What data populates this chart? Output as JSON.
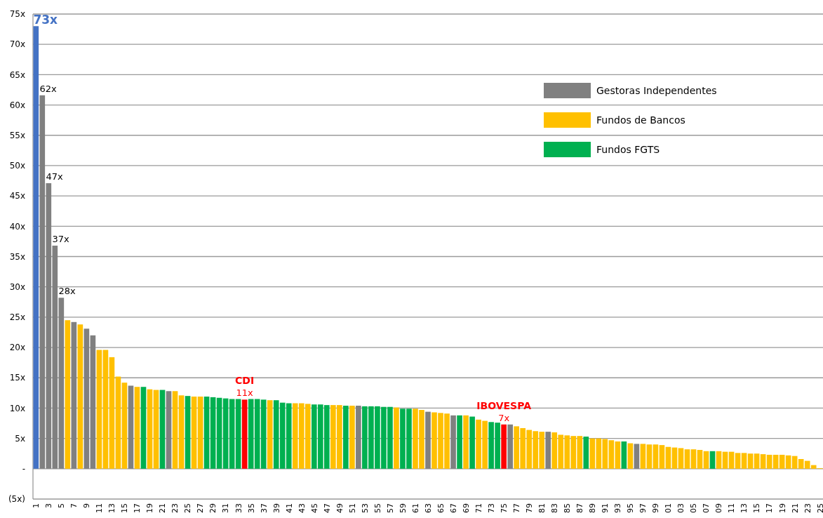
{
  "chart_data": {
    "type": "bar",
    "categories": [
      "1",
      null,
      "3",
      null,
      "5",
      null,
      "7",
      null,
      "9",
      null,
      "11",
      null,
      "13",
      null,
      "15",
      null,
      "17",
      null,
      "19",
      null,
      "21",
      null,
      "23",
      null,
      "25",
      null,
      "27",
      null,
      "29",
      null,
      "31",
      null,
      "33",
      null,
      "35",
      null,
      "37",
      null,
      "39",
      null,
      "41",
      null,
      "43",
      null,
      "45",
      null,
      "47",
      null,
      "49",
      null,
      "51",
      null,
      "53",
      null,
      "55",
      null,
      "57",
      null,
      "59",
      null,
      "61",
      null,
      "63",
      null,
      "65",
      null,
      "67",
      null,
      "69",
      null,
      "71",
      null,
      "73",
      null,
      "75",
      null,
      "77",
      null,
      "79",
      null,
      "81",
      null,
      "83",
      null,
      "85",
      null,
      "87",
      null,
      "89",
      null,
      "91",
      null,
      "93",
      null,
      "95",
      null,
      "97",
      null,
      "99",
      null,
      "01",
      null,
      "03",
      null,
      "05",
      null,
      "07",
      null,
      "09",
      null,
      "11",
      null,
      "13",
      null,
      "15",
      null,
      "17",
      null,
      "19",
      null,
      "21",
      null,
      "23",
      null,
      "25"
    ],
    "ylim": [
      -5,
      75
    ],
    "yticks": [
      {
        "value": -5,
        "label": "(5x)"
      },
      {
        "value": 0,
        "label": "-"
      },
      {
        "value": 5,
        "label": "5x"
      },
      {
        "value": 10,
        "label": "10x"
      },
      {
        "value": 15,
        "label": "15x"
      },
      {
        "value": 20,
        "label": "20x"
      },
      {
        "value": 25,
        "label": "25x"
      },
      {
        "value": 30,
        "label": "30x"
      },
      {
        "value": 35,
        "label": "35x"
      },
      {
        "value": 40,
        "label": "40x"
      },
      {
        "value": 45,
        "label": "45x"
      },
      {
        "value": 50,
        "label": "50x"
      },
      {
        "value": 55,
        "label": "55x"
      },
      {
        "value": 60,
        "label": "60x"
      },
      {
        "value": 65,
        "label": "65x"
      },
      {
        "value": 70,
        "label": "70x"
      },
      {
        "value": 75,
        "label": "75x"
      }
    ],
    "grid": "y",
    "legend": "top right",
    "annotations": [
      {
        "text": "CDI",
        "y": 11.4
      },
      {
        "text": "IBOVESPA",
        "y": 7.3
      }
    ],
    "series": [
      {
        "color": "#4472c4",
        "values": [
          73,
          null,
          null,
          null,
          null,
          null,
          null,
          null,
          null,
          null,
          null,
          null,
          null,
          null,
          null,
          null,
          null,
          null,
          null,
          null,
          null,
          null,
          null,
          null,
          null,
          null,
          null,
          null,
          null,
          null,
          null,
          null,
          null,
          null,
          null,
          null,
          null,
          null,
          null,
          null,
          null,
          null,
          null,
          null,
          null,
          null,
          null,
          null,
          null,
          null,
          null,
          null,
          null,
          null,
          null,
          null,
          null,
          null,
          null,
          null,
          null,
          null,
          null,
          null,
          null,
          null,
          null,
          null,
          null,
          null,
          null,
          null,
          null,
          null,
          null,
          null,
          null,
          null,
          null,
          null,
          null,
          null,
          null,
          null,
          null,
          null,
          null,
          null,
          null,
          null,
          null,
          null,
          null,
          null,
          null,
          null,
          null,
          null,
          null,
          null,
          null,
          null,
          null,
          null,
          null,
          null,
          null,
          null,
          null,
          null,
          null,
          null,
          null,
          null,
          null,
          null,
          null,
          null,
          null,
          null,
          null,
          null,
          null,
          null,
          null
        ],
        "value_labels": [
          "73x",
          null,
          null,
          null,
          null,
          null,
          null,
          null,
          null,
          null,
          null,
          null,
          null,
          null,
          null,
          null,
          null,
          null,
          null,
          null,
          null,
          null,
          null,
          null,
          null,
          null,
          null,
          null,
          null,
          null,
          null,
          null,
          null,
          null,
          null,
          null,
          null,
          null,
          null,
          null,
          null,
          null,
          null,
          null,
          null,
          null,
          null,
          null,
          null,
          null,
          null,
          null,
          null,
          null,
          null,
          null,
          null,
          null,
          null,
          null,
          null,
          null,
          null,
          null,
          null,
          null,
          null,
          null,
          null,
          null,
          null,
          null,
          null,
          null,
          null,
          null,
          null,
          null,
          null,
          null,
          null,
          null,
          null,
          null,
          null,
          null,
          null,
          null,
          null,
          null,
          null,
          null,
          null,
          null,
          null,
          null,
          null,
          null,
          null,
          null,
          null,
          null,
          null,
          null,
          null,
          null,
          null,
          null,
          null,
          null,
          null,
          null,
          null,
          null,
          null,
          null,
          null,
          null,
          null,
          null,
          null,
          null,
          null,
          null,
          null
        ]
      },
      {
        "name": "Gestoras Independentes",
        "color": "#808080",
        "values": [
          null,
          61.6,
          47.1,
          36.8,
          28.2,
          null,
          24.2,
          null,
          23.1,
          22.0,
          null,
          null,
          null,
          null,
          null,
          13.7,
          null,
          null,
          null,
          null,
          null,
          12.8,
          null,
          null,
          null,
          null,
          null,
          null,
          null,
          null,
          null,
          null,
          null,
          null,
          null,
          null,
          null,
          null,
          null,
          null,
          null,
          null,
          null,
          null,
          null,
          null,
          null,
          null,
          null,
          null,
          null,
          10.4,
          null,
          null,
          null,
          null,
          null,
          null,
          null,
          null,
          null,
          null,
          9.4,
          null,
          null,
          null,
          8.8,
          null,
          null,
          null,
          null,
          null,
          null,
          null,
          null,
          7.3,
          null,
          null,
          null,
          null,
          null,
          6.1,
          null,
          null,
          null,
          null,
          null,
          null,
          null,
          null,
          null,
          null,
          null,
          null,
          null,
          4.1,
          null,
          null,
          null,
          null,
          null,
          null,
          null,
          null,
          null,
          null,
          null,
          null,
          null,
          null,
          null,
          null,
          null,
          null,
          null,
          null,
          null,
          null,
          null,
          null,
          null,
          null,
          null,
          null,
          null
        ],
        "value_labels": [
          null,
          "62x",
          "47x",
          "37x",
          "28x",
          null,
          null,
          null,
          null,
          null,
          null,
          null,
          null,
          null,
          null,
          null,
          null,
          null,
          null,
          null,
          null,
          null,
          null,
          null,
          null,
          null,
          null,
          null,
          null,
          null,
          null,
          null,
          null,
          null,
          null,
          null,
          null,
          null,
          null,
          null,
          null,
          null,
          null,
          null,
          null,
          null,
          null,
          null,
          null,
          null,
          null,
          null,
          null,
          null,
          null,
          null,
          null,
          null,
          null,
          null,
          null,
          null,
          null,
          null,
          null,
          null,
          null,
          null,
          null,
          null,
          null,
          null,
          null,
          null,
          null,
          null,
          null,
          null,
          null,
          null,
          null,
          null,
          null,
          null,
          null,
          null,
          null,
          null,
          null,
          null,
          null,
          null,
          null,
          null,
          null,
          null,
          null,
          null,
          null,
          null,
          null,
          null,
          null,
          null,
          null,
          null,
          null,
          null,
          null,
          null,
          null,
          null,
          null,
          null,
          null,
          null,
          null,
          null,
          null,
          null,
          null,
          null,
          null,
          null,
          null
        ]
      },
      {
        "name": "Fundos de Bancos",
        "color": "#ffc000",
        "values": [
          null,
          null,
          null,
          null,
          null,
          24.5,
          null,
          23.8,
          null,
          null,
          19.6,
          19.6,
          18.4,
          15.2,
          14.2,
          null,
          13.5,
          null,
          13.1,
          13.0,
          null,
          null,
          12.8,
          12.1,
          null,
          11.9,
          11.9,
          null,
          null,
          null,
          null,
          null,
          null,
          null,
          null,
          null,
          null,
          11.3,
          null,
          null,
          null,
          10.8,
          10.8,
          10.7,
          null,
          null,
          null,
          10.5,
          10.5,
          null,
          10.4,
          null,
          null,
          null,
          null,
          null,
          null,
          10.1,
          null,
          null,
          9.9,
          9.7,
          null,
          9.3,
          9.2,
          9.1,
          null,
          null,
          8.8,
          null,
          8.1,
          7.9,
          null,
          null,
          null,
          null,
          7.0,
          6.7,
          6.4,
          6.2,
          6.1,
          null,
          6.0,
          5.6,
          5.5,
          5.4,
          5.4,
          null,
          5.0,
          5.0,
          4.9,
          4.7,
          4.5,
          null,
          4.2,
          null,
          4.1,
          4.0,
          4.0,
          3.9,
          3.6,
          3.5,
          3.4,
          3.2,
          3.2,
          3.1,
          2.9,
          null,
          2.9,
          2.8,
          2.8,
          2.6,
          2.6,
          2.5,
          2.5,
          2.4,
          2.3,
          2.3,
          2.3,
          2.2,
          2.1,
          1.6,
          1.3,
          0.6,
          0.1
        ]
      },
      {
        "name": "Fundos FGTS",
        "color": "#00b050",
        "values": [
          null,
          null,
          null,
          null,
          null,
          null,
          null,
          null,
          null,
          null,
          null,
          null,
          null,
          null,
          null,
          null,
          null,
          13.5,
          null,
          null,
          13.0,
          null,
          null,
          null,
          12.0,
          null,
          null,
          11.9,
          11.8,
          11.7,
          11.6,
          11.5,
          11.5,
          null,
          11.5,
          11.5,
          11.4,
          null,
          11.3,
          10.9,
          10.8,
          null,
          null,
          null,
          10.6,
          10.6,
          10.5,
          null,
          null,
          10.4,
          null,
          null,
          10.3,
          10.3,
          10.3,
          10.2,
          10.2,
          null,
          9.9,
          9.9,
          null,
          null,
          null,
          null,
          null,
          null,
          null,
          8.8,
          null,
          8.6,
          null,
          null,
          7.7,
          7.6,
          null,
          null,
          null,
          null,
          null,
          null,
          null,
          null,
          null,
          null,
          null,
          null,
          null,
          5.3,
          null,
          null,
          null,
          null,
          null,
          4.5,
          null,
          null,
          null,
          null,
          null,
          null,
          null,
          null,
          null,
          null,
          null,
          null,
          null,
          2.9,
          null,
          null,
          null,
          null,
          null,
          null,
          null,
          null,
          null,
          null,
          null,
          null,
          null,
          null,
          null,
          null,
          null
        ]
      },
      {
        "color": "#ff0000",
        "values": [
          null,
          null,
          null,
          null,
          null,
          null,
          null,
          null,
          null,
          null,
          null,
          null,
          null,
          null,
          null,
          null,
          null,
          null,
          null,
          null,
          null,
          null,
          null,
          null,
          null,
          null,
          null,
          null,
          null,
          null,
          null,
          null,
          null,
          11.4,
          null,
          null,
          null,
          null,
          null,
          null,
          null,
          null,
          null,
          null,
          null,
          null,
          null,
          null,
          null,
          null,
          null,
          null,
          null,
          null,
          null,
          null,
          null,
          null,
          null,
          null,
          null,
          null,
          null,
          null,
          null,
          null,
          null,
          null,
          null,
          null,
          null,
          null,
          null,
          null,
          7.3,
          null,
          null,
          null,
          null,
          null,
          null,
          null,
          null,
          null,
          null,
          null,
          null,
          null,
          null,
          null,
          null,
          null,
          null,
          null,
          null,
          null,
          null,
          null,
          null,
          null,
          null,
          null,
          null,
          null,
          null,
          null,
          null,
          null,
          null,
          null,
          null,
          null,
          null,
          null,
          null,
          null,
          null,
          null,
          null,
          null,
          null,
          null,
          null,
          null,
          null
        ],
        "value_labels": [
          null,
          null,
          null,
          null,
          null,
          null,
          null,
          null,
          null,
          null,
          null,
          null,
          null,
          null,
          null,
          null,
          null,
          null,
          null,
          null,
          null,
          null,
          null,
          null,
          null,
          null,
          null,
          null,
          null,
          null,
          null,
          null,
          null,
          "11x",
          null,
          null,
          null,
          null,
          null,
          null,
          null,
          null,
          null,
          null,
          null,
          null,
          null,
          null,
          null,
          null,
          null,
          null,
          null,
          null,
          null,
          null,
          null,
          null,
          null,
          null,
          null,
          null,
          null,
          null,
          null,
          null,
          null,
          null,
          null,
          null,
          null,
          null,
          null,
          null,
          "7x",
          null,
          null,
          null,
          null,
          null,
          null,
          null,
          null,
          null,
          null,
          null,
          null,
          null,
          null,
          null,
          null,
          null,
          null,
          null,
          null,
          null,
          null,
          null,
          null,
          null,
          null,
          null,
          null,
          null,
          null,
          null,
          null,
          null,
          null,
          null,
          null,
          null,
          null,
          null,
          null,
          null,
          null,
          null,
          null,
          null,
          null,
          null,
          null,
          null,
          null
        ]
      }
    ]
  }
}
